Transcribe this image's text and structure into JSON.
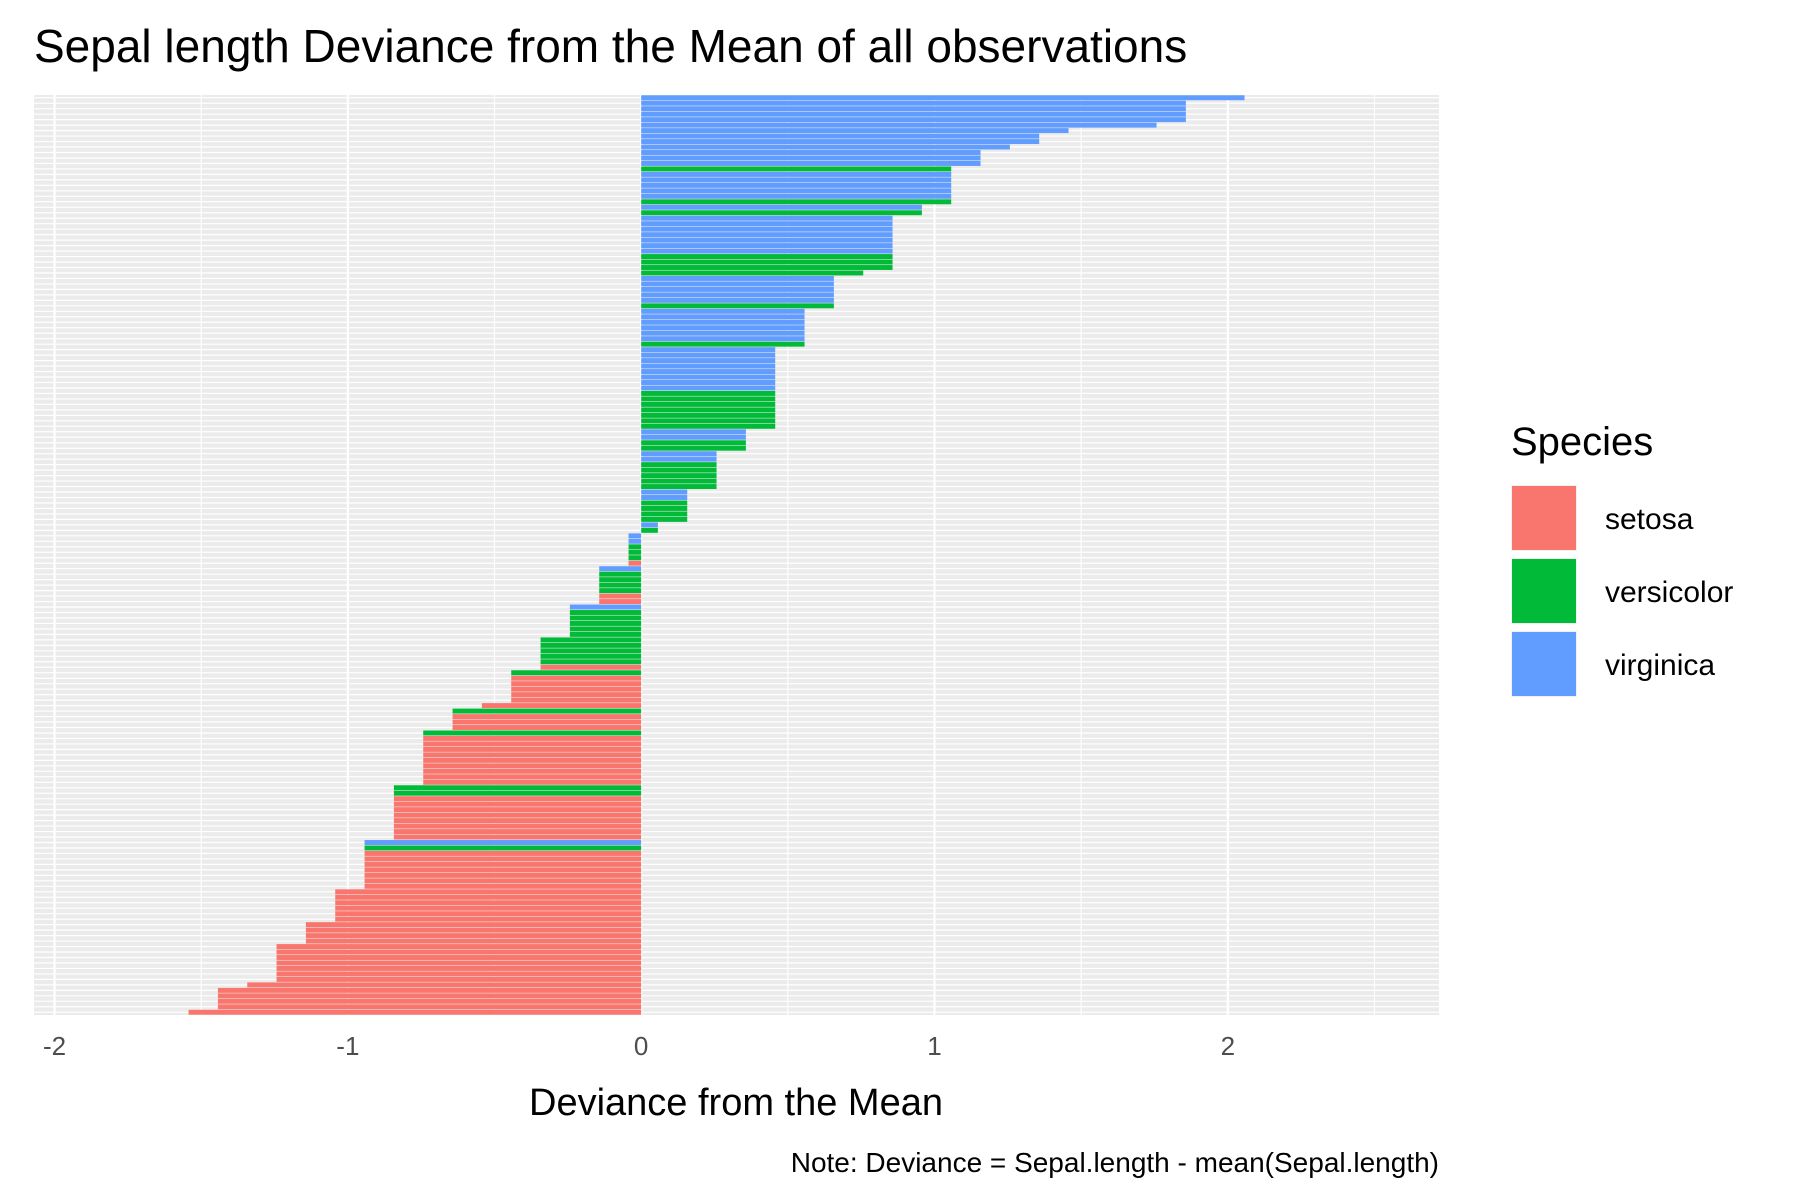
{
  "chart_data": {
    "type": "bar",
    "orientation": "horizontal",
    "title": "Sepal length Deviance from the Mean of all observations",
    "xlabel": "Deviance from the Mean",
    "ylabel": "",
    "caption": "Note: Deviance = Sepal.length - mean(Sepal.length)",
    "xlim": [
      -2.07,
      2.72
    ],
    "x_ticks": [
      -2,
      -1,
      0,
      1,
      2
    ],
    "x_tick_labels": [
      "-2",
      "-1",
      "0",
      "1",
      "2"
    ],
    "y_tick_labels_shown": false,
    "grid": true,
    "legend": {
      "title": "Species",
      "position": "right",
      "entries": [
        {
          "name": "setosa",
          "color": "#F8766D"
        },
        {
          "name": "versicolor",
          "color": "#00BA38"
        },
        {
          "name": "virginica",
          "color": "#619CFF"
        }
      ]
    },
    "series_colors": {
      "setosa": "#F8766D",
      "versicolor": "#00BA38",
      "virginica": "#619CFF"
    },
    "mean_sepal_length": 5.843,
    "sort": "descending by deviance",
    "groups": [
      {
        "value": 2.057,
        "species": [
          "virginica"
        ]
      },
      {
        "value": 1.857,
        "species": [
          "virginica",
          "virginica",
          "virginica",
          "virginica"
        ]
      },
      {
        "value": 1.757,
        "species": [
          "virginica"
        ]
      },
      {
        "value": 1.857,
        "species": []
      },
      {
        "value": 1.457,
        "species": [
          "virginica"
        ]
      },
      {
        "value": 1.357,
        "species": [
          "virginica",
          "virginica"
        ]
      },
      {
        "value": 1.557,
        "species": []
      },
      {
        "value": 1.257,
        "species": [
          "virginica"
        ]
      },
      {
        "value": 1.157,
        "species": [
          "virginica",
          "virginica",
          "virginica"
        ]
      },
      {
        "value": 1.057,
        "species": [
          "versicolor",
          "virginica",
          "virginica",
          "virginica",
          "virginica",
          "virginica",
          "versicolor"
        ]
      },
      {
        "value": 0.957,
        "species": [
          "virginica",
          "versicolor"
        ]
      },
      {
        "value": 0.857,
        "species": [
          "virginica",
          "virginica",
          "virginica",
          "virginica",
          "virginica",
          "virginica",
          "virginica",
          "versicolor",
          "versicolor",
          "versicolor"
        ]
      },
      {
        "value": 0.757,
        "species": [
          "versicolor"
        ]
      },
      {
        "value": 0.657,
        "species": [
          "virginica",
          "virginica",
          "virginica",
          "virginica",
          "virginica",
          "versicolor"
        ]
      },
      {
        "value": 0.557,
        "species": [
          "virginica",
          "virginica",
          "virginica",
          "virginica",
          "virginica",
          "virginica",
          "versicolor"
        ]
      },
      {
        "value": 0.457,
        "species": [
          "virginica",
          "virginica",
          "virginica",
          "virginica",
          "virginica",
          "virginica",
          "virginica",
          "virginica",
          "versicolor",
          "versicolor",
          "versicolor",
          "versicolor",
          "versicolor",
          "versicolor",
          "versicolor"
        ]
      },
      {
        "value": 0.357,
        "species": [
          "virginica",
          "virginica",
          "versicolor",
          "versicolor"
        ]
      },
      {
        "value": 0.257,
        "species": [
          "virginica",
          "virginica",
          "versicolor",
          "versicolor",
          "versicolor",
          "versicolor",
          "versicolor"
        ]
      },
      {
        "value": 0.157,
        "species": [
          "virginica",
          "virginica",
          "versicolor",
          "versicolor",
          "versicolor",
          "versicolor"
        ]
      },
      {
        "value": 0.057,
        "species": [
          "virginica",
          "versicolor"
        ]
      },
      {
        "value": -0.043,
        "species": [
          "virginica",
          "virginica",
          "versicolor",
          "versicolor",
          "versicolor",
          "setosa"
        ]
      },
      {
        "value": -0.143,
        "species": [
          "virginica",
          "versicolor",
          "versicolor",
          "versicolor",
          "versicolor",
          "setosa",
          "setosa"
        ]
      },
      {
        "value": -0.243,
        "species": [
          "virginica",
          "versicolor",
          "versicolor",
          "versicolor",
          "versicolor",
          "versicolor"
        ]
      },
      {
        "value": -0.343,
        "species": [
          "versicolor",
          "versicolor",
          "versicolor",
          "versicolor",
          "versicolor",
          "setosa"
        ]
      },
      {
        "value": -0.443,
        "species": [
          "versicolor",
          "setosa",
          "setosa",
          "setosa",
          "setosa",
          "setosa"
        ]
      },
      {
        "value": -0.543,
        "species": [
          "setosa"
        ]
      },
      {
        "value": -0.643,
        "species": [
          "versicolor",
          "setosa",
          "setosa",
          "setosa"
        ]
      },
      {
        "value": -0.743,
        "species": [
          "versicolor",
          "setosa",
          "setosa",
          "setosa",
          "setosa",
          "setosa",
          "setosa",
          "setosa",
          "setosa",
          "setosa"
        ]
      },
      {
        "value": -0.843,
        "species": [
          "versicolor",
          "versicolor",
          "setosa",
          "setosa",
          "setosa",
          "setosa",
          "setosa",
          "setosa",
          "setosa",
          "setosa"
        ]
      },
      {
        "value": -0.943,
        "species": [
          "virginica",
          "versicolor",
          "setosa",
          "setosa",
          "setosa",
          "setosa",
          "setosa",
          "setosa",
          "setosa"
        ]
      },
      {
        "value": -1.043,
        "species": [
          "setosa",
          "setosa",
          "setosa",
          "setosa",
          "setosa",
          "setosa"
        ]
      },
      {
        "value": -1.143,
        "species": [
          "setosa",
          "setosa",
          "setosa",
          "setosa"
        ]
      },
      {
        "value": -1.243,
        "species": [
          "setosa",
          "setosa",
          "setosa",
          "setosa",
          "setosa",
          "setosa",
          "setosa"
        ]
      },
      {
        "value": -1.343,
        "species": [
          "setosa"
        ]
      },
      {
        "value": -1.443,
        "species": [
          "setosa",
          "setosa",
          "setosa",
          "setosa"
        ]
      },
      {
        "value": -1.543,
        "species": [
          "setosa"
        ]
      }
    ]
  }
}
